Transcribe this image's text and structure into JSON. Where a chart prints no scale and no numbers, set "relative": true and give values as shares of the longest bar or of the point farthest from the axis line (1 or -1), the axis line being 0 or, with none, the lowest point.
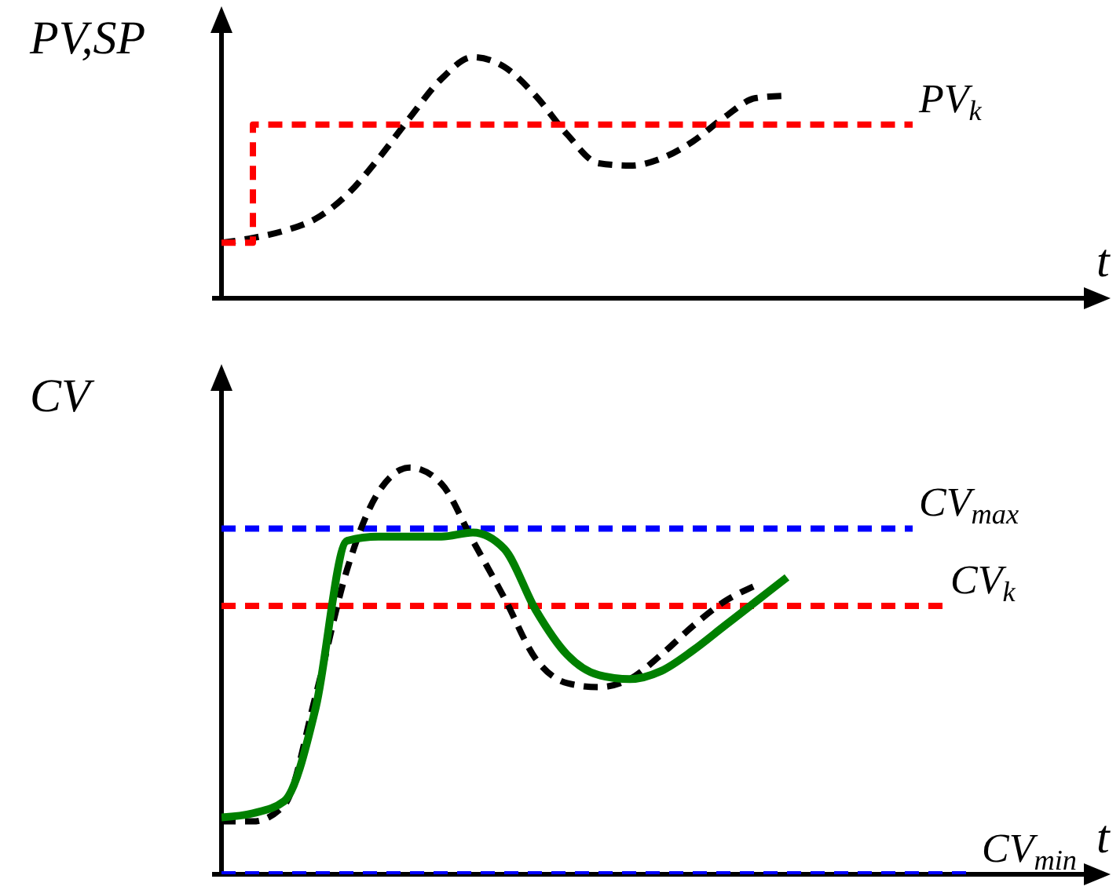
{
  "chart_data": [
    {
      "type": "line",
      "relative": true,
      "ylabel": "PV,SP",
      "xlabel": "t",
      "categories": [
        null,
        null,
        null,
        null,
        null,
        null,
        null,
        null,
        null,
        null,
        null,
        null,
        null,
        null,
        null,
        null,
        null,
        null,
        null,
        null,
        null,
        null,
        null,
        null,
        null,
        null,
        null,
        null
      ],
      "series": [
        {
          "color": "#000000",
          "line_style": "dashed",
          "values": [
            0.23,
            0.25,
            0.28,
            0.33,
            0.43,
            0.58,
            0.75,
            0.91,
            1.0,
            0.96,
            0.84,
            0.68,
            0.56,
            0.55,
            0.58,
            0.65,
            0.75,
            0.83,
            0.84,
            null,
            null,
            null,
            null,
            null,
            null,
            null,
            null,
            null
          ]
        },
        {
          "type": "step",
          "name": "PV$_{k}$",
          "color": "#ff0000",
          "line_style": "dashed",
          "values": [
            0.23,
            0.72,
            0.72,
            0.72,
            0.72,
            0.72,
            0.72,
            0.72,
            0.72,
            0.72,
            0.72,
            0.72,
            0.72,
            0.72,
            0.72,
            0.72,
            0.72,
            0.72,
            0.72,
            0.72,
            0.72,
            0.72,
            0.72,
            null,
            null,
            null,
            null,
            null
          ]
        }
      ]
    },
    {
      "type": "line",
      "relative": true,
      "ylabel": "CV",
      "xlabel": "t",
      "categories": [
        null,
        null,
        null,
        null,
        null,
        null,
        null,
        null,
        null,
        null,
        null,
        null,
        null,
        null,
        null,
        null,
        null,
        null,
        null,
        null,
        null,
        null,
        null,
        null,
        null,
        null,
        null,
        null
      ],
      "series": [
        {
          "name": "CV$_{max}$",
          "color": "#0000ff",
          "line_style": "dashed",
          "values": [
            0.85,
            0.85,
            0.85,
            0.85,
            0.85,
            0.85,
            0.85,
            0.85,
            0.85,
            0.85,
            0.85,
            0.85,
            0.85,
            0.85,
            0.85,
            0.85,
            0.85,
            0.85,
            0.85,
            0.85,
            0.85,
            0.85,
            0.85,
            null,
            null,
            null,
            null,
            null
          ]
        },
        {
          "name": "CV$_{k}$",
          "color": "#ff0000",
          "line_style": "dashed",
          "values": [
            0.66,
            0.66,
            0.66,
            0.66,
            0.66,
            0.66,
            0.66,
            0.66,
            0.66,
            0.66,
            0.66,
            0.66,
            0.66,
            0.66,
            0.66,
            0.66,
            0.66,
            0.66,
            0.66,
            0.66,
            0.66,
            0.66,
            0.66,
            0.66,
            null,
            null,
            null,
            null
          ]
        },
        {
          "name": "CV$_{min}$",
          "color": "#0000ff",
          "line_style": "dashed",
          "values": [
            0,
            0,
            0,
            0,
            0,
            0,
            0,
            0,
            0,
            0,
            0,
            0,
            0,
            0,
            0,
            0,
            0,
            0,
            0,
            0,
            0,
            0,
            0,
            0,
            0,
            null,
            null,
            null
          ]
        },
        {
          "color": "#000000",
          "line_style": "dashed",
          "values": [
            0.13,
            0.13,
            0.17,
            0.44,
            0.75,
            0.94,
            1.0,
            0.96,
            0.82,
            0.68,
            0.53,
            0.47,
            0.46,
            0.48,
            0.54,
            0.61,
            0.67,
            0.71,
            null,
            null,
            null,
            null,
            null,
            null,
            null,
            null,
            null,
            null
          ]
        },
        {
          "color": "#008000",
          "line_style": "solid",
          "values": [
            0.14,
            0.15,
            0.18,
            0.41,
            0.82,
            0.83,
            0.83,
            0.83,
            0.84,
            0.8,
            0.65,
            0.54,
            0.49,
            0.48,
            0.5,
            0.55,
            0.61,
            0.67,
            0.73,
            null,
            null,
            null,
            null,
            null,
            null,
            null,
            null,
            null
          ]
        }
      ]
    }
  ]
}
